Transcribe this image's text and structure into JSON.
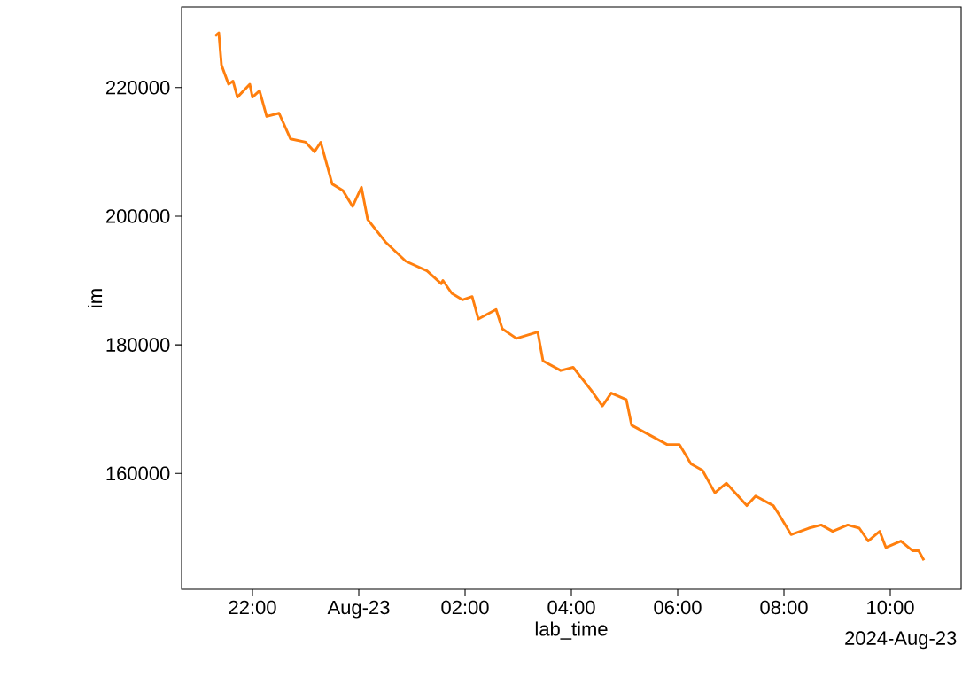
{
  "chart_data": {
    "type": "line",
    "xlabel": "lab_time",
    "ylabel": "im",
    "annotations": [
      "2024-Aug-23"
    ],
    "x": [
      "2024-08-22T21:18",
      "2024-08-22T21:22",
      "2024-08-22T21:25",
      "2024-08-22T21:33",
      "2024-08-22T21:38",
      "2024-08-22T21:43",
      "2024-08-22T21:57",
      "2024-08-22T22:00",
      "2024-08-22T22:08",
      "2024-08-22T22:16",
      "2024-08-22T22:30",
      "2024-08-22T22:43",
      "2024-08-22T23:00",
      "2024-08-22T23:10",
      "2024-08-22T23:17",
      "2024-08-22T23:30",
      "2024-08-22T23:42",
      "2024-08-22T23:53",
      "2024-08-23T00:03",
      "2024-08-23T00:10",
      "2024-08-23T00:30",
      "2024-08-23T00:53",
      "2024-08-23T01:17",
      "2024-08-23T01:33",
      "2024-08-23T01:35",
      "2024-08-23T01:45",
      "2024-08-23T01:57",
      "2024-08-23T02:08",
      "2024-08-23T02:15",
      "2024-08-23T02:35",
      "2024-08-23T02:42",
      "2024-08-23T02:58",
      "2024-08-23T03:22",
      "2024-08-23T03:28",
      "2024-08-23T03:48",
      "2024-08-23T04:02",
      "2024-08-23T04:22",
      "2024-08-23T04:35",
      "2024-08-23T04:45",
      "2024-08-23T05:02",
      "2024-08-23T05:08",
      "2024-08-23T05:28",
      "2024-08-23T05:48",
      "2024-08-23T06:02",
      "2024-08-23T06:15",
      "2024-08-23T06:28",
      "2024-08-23T06:42",
      "2024-08-23T06:55",
      "2024-08-23T07:18",
      "2024-08-23T07:28",
      "2024-08-23T07:48",
      "2024-08-23T07:55",
      "2024-08-23T08:08",
      "2024-08-23T08:28",
      "2024-08-23T08:42",
      "2024-08-23T08:55",
      "2024-08-23T09:12",
      "2024-08-23T09:25",
      "2024-08-23T09:35",
      "2024-08-23T09:48",
      "2024-08-23T09:55",
      "2024-08-23T10:12",
      "2024-08-23T10:25",
      "2024-08-23T10:32",
      "2024-08-23T10:38"
    ],
    "series": [
      {
        "color": "#ff7f0e",
        "values": [
          228000,
          228500,
          223500,
          220500,
          221000,
          218500,
          220500,
          218500,
          219500,
          215500,
          216000,
          212000,
          211500,
          210000,
          211500,
          205000,
          204000,
          201500,
          204500,
          199500,
          196000,
          193000,
          191500,
          189500,
          190000,
          188000,
          187000,
          187500,
          184000,
          185500,
          182500,
          181000,
          182000,
          177500,
          176000,
          176500,
          173000,
          170500,
          172500,
          171500,
          167500,
          166000,
          164500,
          164500,
          161500,
          160500,
          157000,
          158500,
          155000,
          156500,
          155000,
          153500,
          150500,
          151500,
          152000,
          151000,
          152000,
          151500,
          149500,
          151000,
          148500,
          149500,
          148000,
          148000,
          146500
        ]
      }
    ],
    "xlim": [
      "2024-08-22T20:40",
      "2024-08-23T11:20"
    ],
    "ylim": [
      142000,
      232500
    ],
    "xticks": [
      {
        "value": "2024-08-22T22:00",
        "label": "22:00"
      },
      {
        "value": "2024-08-23T00:00",
        "label": "Aug-23"
      },
      {
        "value": "2024-08-23T02:00",
        "label": "02:00"
      },
      {
        "value": "2024-08-23T04:00",
        "label": "04:00"
      },
      {
        "value": "2024-08-23T06:00",
        "label": "06:00"
      },
      {
        "value": "2024-08-23T08:00",
        "label": "08:00"
      },
      {
        "value": "2024-08-23T10:00",
        "label": "10:00"
      }
    ],
    "yticks": [
      160000,
      180000,
      200000,
      220000
    ],
    "grid": false,
    "line_style": "solid"
  }
}
